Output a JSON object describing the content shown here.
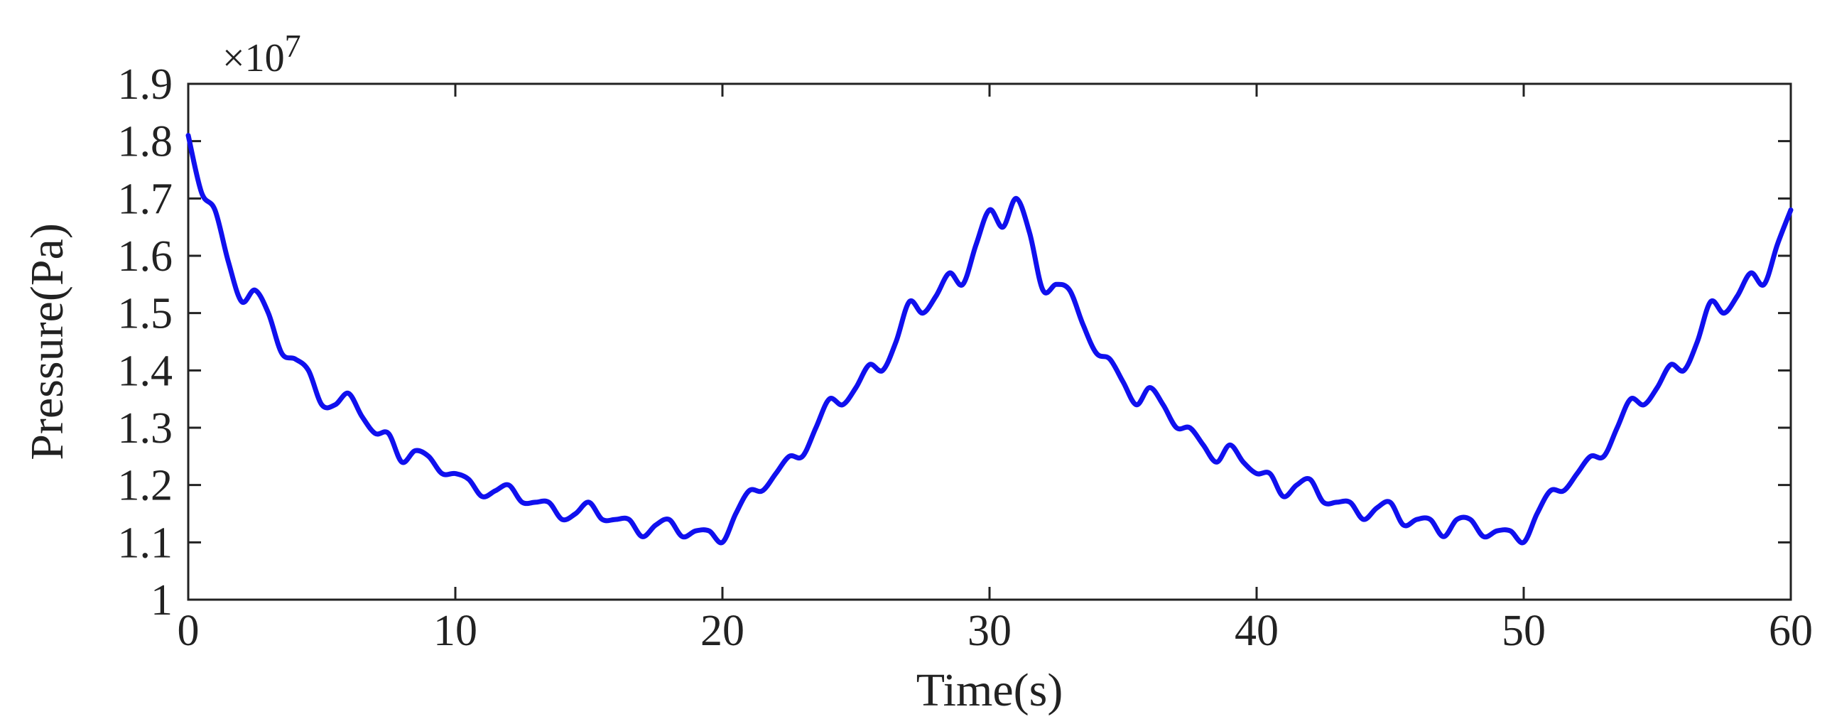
{
  "chart_data": {
    "type": "line",
    "title": "",
    "xlabel": "Time(s)",
    "ylabel": "Pressure(Pa)",
    "y_multiplier_label": "×10",
    "y_multiplier_exponent": "7",
    "xlim": [
      0,
      60
    ],
    "ylim": [
      1.0,
      1.9
    ],
    "x_ticks": [
      0,
      10,
      20,
      30,
      40,
      50,
      60
    ],
    "x_tick_labels": [
      "0",
      "10",
      "20",
      "30",
      "40",
      "50",
      "60"
    ],
    "y_ticks": [
      1.0,
      1.1,
      1.2,
      1.3,
      1.4,
      1.5,
      1.6,
      1.7,
      1.8,
      1.9
    ],
    "y_tick_labels": [
      "1",
      "1.1",
      "1.2",
      "1.3",
      "1.4",
      "1.5",
      "1.6",
      "1.7",
      "1.8",
      "1.9"
    ],
    "grid": false,
    "line_color": "#1010ee",
    "series": [
      {
        "x": [
          0,
          0.5,
          1.0,
          1.5,
          2.0,
          2.5,
          3.0,
          3.5,
          4.0,
          4.5,
          5.0,
          5.5,
          6.0,
          6.5,
          7.0,
          7.5,
          8.0,
          8.5,
          9.0,
          9.5,
          10.0,
          10.5,
          11.0,
          11.5,
          12.0,
          12.5,
          13.0,
          13.5,
          14.0,
          14.5,
          15.0,
          15.5,
          16.0,
          16.5,
          17.0,
          17.5,
          18.0,
          18.5,
          19.0,
          19.5,
          20.0,
          20.5,
          21.0,
          21.5,
          22.0,
          22.5,
          23.0,
          23.5,
          24.0,
          24.5,
          25.0,
          25.5,
          26.0,
          26.5,
          27.0,
          27.5,
          28.0,
          28.5,
          29.0,
          29.5,
          30.0,
          30.5,
          31.0,
          31.5,
          32.0,
          32.5,
          33.0,
          33.5,
          34.0,
          34.5,
          35.0,
          35.5,
          36.0,
          36.5,
          37.0,
          37.5,
          38.0,
          38.5,
          39.0,
          39.5,
          40.0,
          40.5,
          41.0,
          41.5,
          42.0,
          42.5,
          43.0,
          43.5,
          44.0,
          44.5,
          45.0,
          45.5,
          46.0,
          46.5,
          47.0,
          47.5,
          48.0,
          48.5,
          49.0,
          49.5,
          50.0,
          50.5,
          51.0,
          51.5,
          52.0,
          52.5,
          53.0,
          53.5,
          54.0,
          54.5,
          55.0,
          55.5,
          56.0,
          56.5,
          57.0,
          57.5,
          58.0,
          58.5,
          59.0,
          59.5,
          60.0
        ],
        "y": [
          1.81,
          1.71,
          1.68,
          1.59,
          1.52,
          1.54,
          1.5,
          1.43,
          1.42,
          1.4,
          1.34,
          1.34,
          1.36,
          1.32,
          1.29,
          1.29,
          1.24,
          1.26,
          1.25,
          1.22,
          1.22,
          1.21,
          1.18,
          1.19,
          1.2,
          1.17,
          1.17,
          1.17,
          1.14,
          1.15,
          1.17,
          1.14,
          1.14,
          1.14,
          1.11,
          1.13,
          1.14,
          1.11,
          1.12,
          1.12,
          1.1,
          1.15,
          1.19,
          1.19,
          1.22,
          1.25,
          1.25,
          1.3,
          1.35,
          1.34,
          1.37,
          1.41,
          1.4,
          1.45,
          1.52,
          1.5,
          1.53,
          1.57,
          1.55,
          1.62,
          1.68,
          1.65,
          1.7,
          1.64,
          1.54,
          1.55,
          1.54,
          1.48,
          1.43,
          1.42,
          1.38,
          1.34,
          1.37,
          1.34,
          1.3,
          1.3,
          1.27,
          1.24,
          1.27,
          1.24,
          1.22,
          1.22,
          1.18,
          1.2,
          1.21,
          1.17,
          1.17,
          1.17,
          1.14,
          1.16,
          1.17,
          1.13,
          1.14,
          1.14,
          1.11,
          1.14,
          1.14,
          1.11,
          1.12,
          1.12,
          1.1,
          1.15,
          1.19,
          1.19,
          1.22,
          1.25,
          1.25,
          1.3,
          1.35,
          1.34,
          1.37,
          1.41,
          1.4,
          1.45,
          1.52,
          1.5,
          1.53,
          1.57,
          1.55,
          1.62,
          1.68
        ]
      }
    ]
  }
}
